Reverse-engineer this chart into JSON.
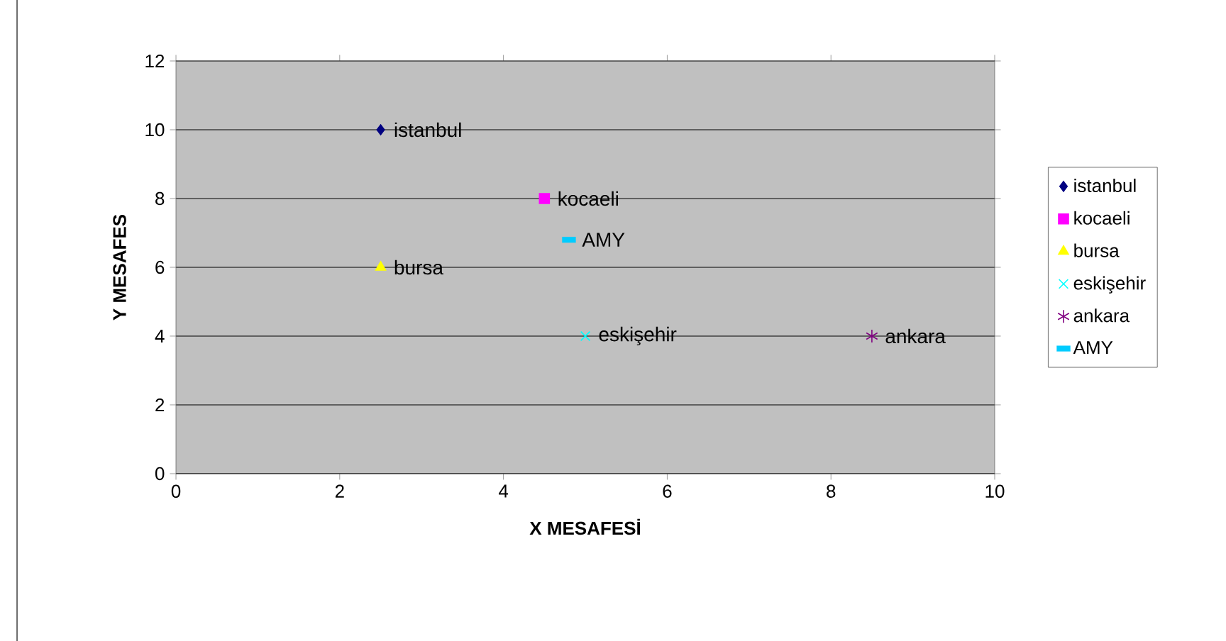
{
  "chart_data": {
    "type": "scatter",
    "xlabel": "X MESAFESİ",
    "ylabel": "Y MESAFES",
    "xlim": [
      0,
      10
    ],
    "xticks": [
      0,
      2,
      4,
      6,
      8,
      10
    ],
    "ylim": [
      0,
      12
    ],
    "yticks": [
      0,
      2,
      4,
      6,
      8,
      10,
      12
    ],
    "grid": "y",
    "legend": "right",
    "series": [
      {
        "name": "istanbul",
        "color": "#000080",
        "marker": "diamond",
        "x": [
          2.5
        ],
        "values": [
          10
        ]
      },
      {
        "name": "kocaeli",
        "color": "#ff00ff",
        "marker": "square",
        "x": [
          4.5
        ],
        "values": [
          8
        ]
      },
      {
        "name": "bursa",
        "color": "#ffff00",
        "marker": "triangle",
        "x": [
          2.5
        ],
        "values": [
          6
        ]
      },
      {
        "name": "eskişehir",
        "color": "#00ffff",
        "marker": "cross",
        "x": [
          5
        ],
        "values": [
          4
        ]
      },
      {
        "name": "ankara",
        "color": "#800080",
        "x": [
          8.5
        ],
        "values": [
          4
        ]
      },
      {
        "name": "AMY",
        "color": "#00ccff",
        "x": [
          4.8
        ],
        "values": [
          6.8
        ]
      }
    ]
  }
}
